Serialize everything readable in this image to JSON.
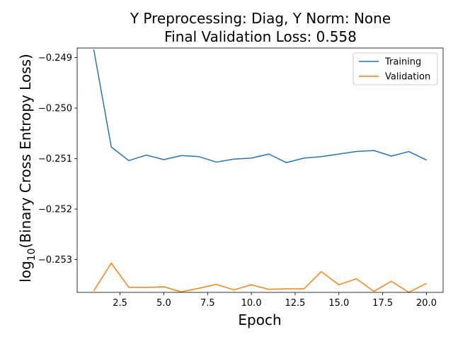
{
  "chart_data": {
    "type": "line",
    "title": [
      "Y Preprocessing: Diag, Y Norm: None",
      "Final Validation Loss: 0.558"
    ],
    "xlabel": "Epoch",
    "ylabel_main": "log",
    "ylabel_sub": "10",
    "ylabel_rest": "(Binary Cross Entropy Loss)",
    "xlim": [
      0.05,
      20.95
    ],
    "ylim": [
      -0.25365,
      -0.24881
    ],
    "xticks": [
      2.5,
      5.0,
      7.5,
      10.0,
      12.5,
      15.0,
      17.5,
      20.0
    ],
    "xtick_labels": [
      "2.5",
      "5.0",
      "7.5",
      "10.0",
      "12.5",
      "15.0",
      "17.5",
      "20.0"
    ],
    "yticks": [
      -0.249,
      -0.25,
      -0.251,
      -0.252,
      -0.253
    ],
    "ytick_labels": [
      "−0.249",
      "−0.250",
      "−0.251",
      "−0.252",
      "−0.253"
    ],
    "legend_position": "top-right",
    "grid": false,
    "x": [
      1,
      2,
      3,
      4,
      5,
      6,
      7,
      8,
      9,
      10,
      11,
      12,
      13,
      14,
      15,
      16,
      17,
      18,
      19,
      20
    ],
    "series": [
      {
        "name": "Training",
        "color": "#1f77b4",
        "values": [
          -0.24884,
          -0.25077,
          -0.25104,
          -0.25093,
          -0.25102,
          -0.25094,
          -0.25096,
          -0.25107,
          -0.25101,
          -0.25099,
          -0.25091,
          -0.25108,
          -0.25099,
          -0.25096,
          -0.25091,
          -0.25086,
          -0.25084,
          -0.25095,
          -0.25086,
          -0.25103
        ]
      },
      {
        "name": "Validation",
        "color": "#ff7f0e",
        "values": [
          -0.25362,
          -0.25307,
          -0.25355,
          -0.25355,
          -0.25354,
          -0.25364,
          -0.25357,
          -0.25349,
          -0.2536,
          -0.2535,
          -0.25359,
          -0.25358,
          -0.25358,
          -0.25324,
          -0.2535,
          -0.25338,
          -0.25363,
          -0.25343,
          -0.25365,
          -0.25347
        ]
      }
    ]
  }
}
